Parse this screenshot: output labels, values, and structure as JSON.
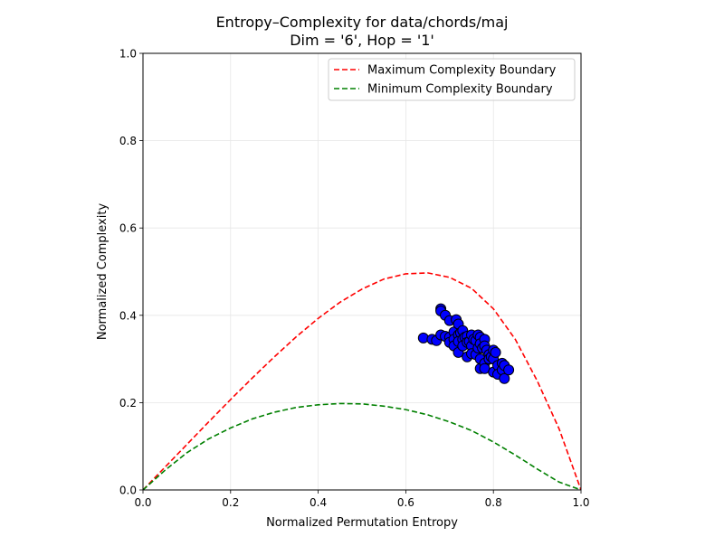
{
  "chart_data": {
    "type": "scatter",
    "title_line1": "Entropy–Complexity for data/chords/maj",
    "title_line2": "Dim = '6', Hop = '1'",
    "xlabel": "Normalized Permutation Entropy",
    "ylabel": "Normalized Complexity",
    "xlim": [
      0,
      1
    ],
    "ylim": [
      0,
      1
    ],
    "grid": true,
    "legend_position": "top-right",
    "x_ticks": [
      "0.0",
      "0.2",
      "0.4",
      "0.6",
      "0.8",
      "1.0"
    ],
    "y_ticks": [
      "0.0",
      "0.2",
      "0.4",
      "0.6",
      "0.8",
      "1.0"
    ],
    "series": [
      {
        "name": "Maximum Complexity Boundary",
        "style": "dashed",
        "color": "#ff0000",
        "x": [
          0.0,
          0.05,
          0.1,
          0.15,
          0.2,
          0.25,
          0.3,
          0.35,
          0.4,
          0.45,
          0.5,
          0.55,
          0.6,
          0.65,
          0.7,
          0.75,
          0.8,
          0.85,
          0.9,
          0.95,
          1.0
        ],
        "y": [
          0.0,
          0.052,
          0.104,
          0.156,
          0.207,
          0.257,
          0.305,
          0.351,
          0.393,
          0.43,
          0.46,
          0.483,
          0.495,
          0.497,
          0.487,
          0.462,
          0.415,
          0.345,
          0.25,
          0.14,
          0.0
        ]
      },
      {
        "name": "Minimum Complexity Boundary",
        "style": "dashed",
        "color": "#008000",
        "x": [
          0.0,
          0.05,
          0.1,
          0.15,
          0.2,
          0.25,
          0.3,
          0.35,
          0.4,
          0.45,
          0.5,
          0.55,
          0.6,
          0.65,
          0.7,
          0.75,
          0.8,
          0.85,
          0.9,
          0.95,
          1.0
        ],
        "y": [
          0.0,
          0.045,
          0.085,
          0.117,
          0.142,
          0.163,
          0.178,
          0.189,
          0.195,
          0.198,
          0.197,
          0.192,
          0.184,
          0.172,
          0.156,
          0.136,
          0.11,
          0.08,
          0.048,
          0.018,
          0.0
        ]
      },
      {
        "name": "",
        "style": "markers",
        "color": "#0000ff",
        "edge_color": "#000000",
        "points": [
          [
            0.64,
            0.348
          ],
          [
            0.66,
            0.345
          ],
          [
            0.67,
            0.342
          ],
          [
            0.68,
            0.415
          ],
          [
            0.68,
            0.41
          ],
          [
            0.68,
            0.355
          ],
          [
            0.69,
            0.352
          ],
          [
            0.69,
            0.4
          ],
          [
            0.7,
            0.388
          ],
          [
            0.7,
            0.35
          ],
          [
            0.7,
            0.338
          ],
          [
            0.71,
            0.362
          ],
          [
            0.71,
            0.345
          ],
          [
            0.71,
            0.33
          ],
          [
            0.715,
            0.39
          ],
          [
            0.72,
            0.38
          ],
          [
            0.72,
            0.355
          ],
          [
            0.72,
            0.34
          ],
          [
            0.72,
            0.315
          ],
          [
            0.725,
            0.36
          ],
          [
            0.73,
            0.365
          ],
          [
            0.73,
            0.345
          ],
          [
            0.73,
            0.33
          ],
          [
            0.735,
            0.35
          ],
          [
            0.74,
            0.352
          ],
          [
            0.74,
            0.338
          ],
          [
            0.74,
            0.305
          ],
          [
            0.745,
            0.34
          ],
          [
            0.75,
            0.355
          ],
          [
            0.75,
            0.33
          ],
          [
            0.75,
            0.312
          ],
          [
            0.755,
            0.345
          ],
          [
            0.76,
            0.342
          ],
          [
            0.76,
            0.31
          ],
          [
            0.765,
            0.355
          ],
          [
            0.765,
            0.325
          ],
          [
            0.77,
            0.35
          ],
          [
            0.77,
            0.335
          ],
          [
            0.77,
            0.3
          ],
          [
            0.77,
            0.278
          ],
          [
            0.775,
            0.325
          ],
          [
            0.78,
            0.345
          ],
          [
            0.78,
            0.33
          ],
          [
            0.78,
            0.29
          ],
          [
            0.78,
            0.278
          ],
          [
            0.785,
            0.32
          ],
          [
            0.79,
            0.31
          ],
          [
            0.79,
            0.3
          ],
          [
            0.795,
            0.305
          ],
          [
            0.8,
            0.32
          ],
          [
            0.8,
            0.3
          ],
          [
            0.8,
            0.27
          ],
          [
            0.805,
            0.315
          ],
          [
            0.81,
            0.285
          ],
          [
            0.81,
            0.265
          ],
          [
            0.82,
            0.29
          ],
          [
            0.82,
            0.275
          ],
          [
            0.825,
            0.285
          ],
          [
            0.825,
            0.255
          ],
          [
            0.835,
            0.275
          ]
        ]
      }
    ]
  }
}
